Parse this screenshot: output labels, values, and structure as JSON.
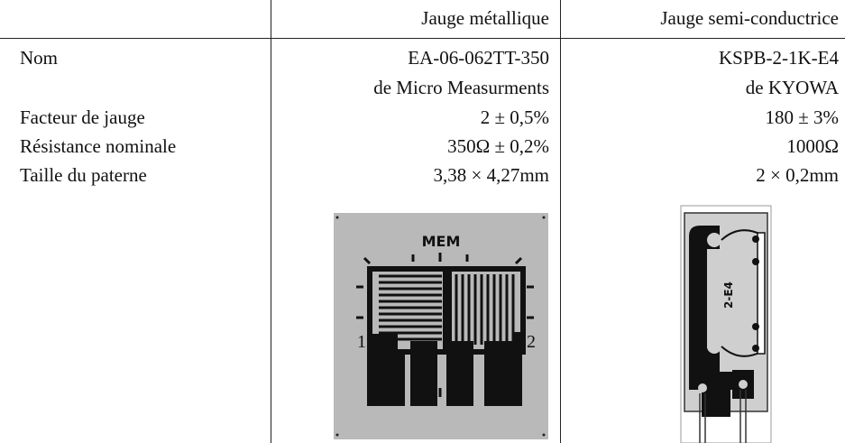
{
  "table": {
    "header": [
      "Jauge métallique",
      "Jauge semi-conductrice"
    ],
    "rows": [
      {
        "label": "Nom",
        "values": [
          "EA-06-062TT-350",
          "KSPB-2-1K-E4"
        ]
      },
      {
        "values": [
          "de Micro Measurments",
          "de KYOWA"
        ]
      },
      {
        "label": "Facteur de jauge",
        "values": [
          "2 ± 0,5%",
          "180 ± 3%"
        ]
      },
      {
        "label": "Résistance nominale",
        "values": [
          "350Ω ± 0,2%",
          "1000Ω"
        ]
      },
      {
        "label": "Taille du paterne",
        "values": [
          "3,38 × 4,27mm",
          "2 × 0,2mm"
        ]
      }
    ],
    "images": {
      "metal": {
        "logo": "MEM",
        "labels": [
          "1",
          "2"
        ]
      },
      "semi": {
        "label": "2-E4"
      }
    }
  }
}
